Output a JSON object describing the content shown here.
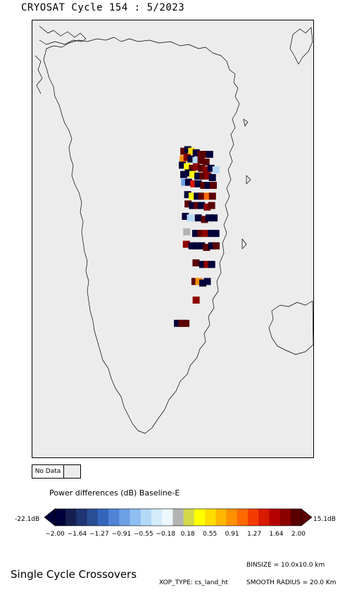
{
  "title": "CRYOSAT Cycle 154 : 5/2023",
  "no_data": {
    "label": "No Data",
    "color": "#ececec"
  },
  "colorbar": {
    "title": "Power differences (dB) Baseline-E",
    "min_label": "-22.1dB",
    "max_label": "15.1dB",
    "ticks": [
      "−2.00",
      "−1.64",
      "−1.27",
      "−0.91",
      "−0.55",
      "−0.18",
      "0.18",
      "0.55",
      "0.91",
      "1.27",
      "1.64",
      "2.00"
    ],
    "colors": [
      "#00003a",
      "#15204f",
      "#1f3572",
      "#284f96",
      "#3366bb",
      "#4e83d6",
      "#6ea0e6",
      "#8ebdf2",
      "#b3d9f8",
      "#d4ecfb",
      "#eef8fe",
      "#b4b4b4",
      "#d3d84a",
      "#ffff00",
      "#ffdd00",
      "#ffb800",
      "#ff9000",
      "#ff6a00",
      "#f43c00",
      "#d81a00",
      "#b50000",
      "#8c0000",
      "#5a0000"
    ]
  },
  "footer": {
    "title": "Single Cycle Crossovers",
    "binsize": "BINSIZE = 10.0x10.0 km",
    "xop_type": "XOP_TYPE: cs_land_ht",
    "smooth_radius": "SMOOTH RADIUS = 20.0 Km"
  },
  "map": {
    "background_color": "#ececec",
    "coastline_color": "#000000",
    "cells": [
      {
        "lon": -38.5,
        "lat": 80.2,
        "c": "#5a0000"
      },
      {
        "lon": -37.8,
        "lat": 80.3,
        "c": "#00003a"
      },
      {
        "lon": -37.1,
        "lat": 80.2,
        "c": "#ffdd00"
      },
      {
        "lon": -36.3,
        "lat": 80.1,
        "c": "#00003a"
      },
      {
        "lon": -35.5,
        "lat": 80.0,
        "c": "#5a0000"
      },
      {
        "lon": -34.7,
        "lat": 80.0,
        "c": "#5a0000"
      },
      {
        "lon": -33.9,
        "lat": 80.0,
        "c": "#00003a"
      },
      {
        "lon": -38.6,
        "lat": 79.7,
        "c": "#ff9000"
      },
      {
        "lon": -37.9,
        "lat": 79.8,
        "c": "#8c0000"
      },
      {
        "lon": -37.2,
        "lat": 79.7,
        "c": "#00003a"
      },
      {
        "lon": -36.3,
        "lat": 79.6,
        "c": "#b3d9f8"
      },
      {
        "lon": -35.4,
        "lat": 79.6,
        "c": "#5a0000"
      },
      {
        "lon": -34.5,
        "lat": 79.5,
        "c": "#5a0000"
      },
      {
        "lon": -38.7,
        "lat": 79.3,
        "c": "#00003a"
      },
      {
        "lon": -37.8,
        "lat": 79.2,
        "c": "#ffff00"
      },
      {
        "lon": -36.9,
        "lat": 79.1,
        "c": "#5a0000"
      },
      {
        "lon": -36.2,
        "lat": 79.2,
        "c": "#8c0000"
      },
      {
        "lon": -35.3,
        "lat": 79.1,
        "c": "#5a0000"
      },
      {
        "lon": -34.4,
        "lat": 79.0,
        "c": "#8c0000"
      },
      {
        "lon": -33.6,
        "lat": 79.1,
        "c": "#00003a"
      },
      {
        "lon": -32.7,
        "lat": 79.0,
        "c": "#b3d9f8"
      },
      {
        "lon": -38.4,
        "lat": 78.7,
        "c": "#00003a"
      },
      {
        "lon": -37.6,
        "lat": 78.8,
        "c": "#00003a"
      },
      {
        "lon": -36.8,
        "lat": 78.7,
        "c": "#ffff00"
      },
      {
        "lon": -35.9,
        "lat": 78.6,
        "c": "#00003a"
      },
      {
        "lon": -35.0,
        "lat": 78.6,
        "c": "#5a0000"
      },
      {
        "lon": -34.1,
        "lat": 78.6,
        "c": "#8c0000"
      },
      {
        "lon": -33.3,
        "lat": 78.5,
        "c": "#00003a"
      },
      {
        "lon": -38.2,
        "lat": 78.2,
        "c": "#6ea0e6"
      },
      {
        "lon": -37.5,
        "lat": 78.2,
        "c": "#00003a"
      },
      {
        "lon": -36.6,
        "lat": 78.1,
        "c": "#d81a00"
      },
      {
        "lon": -35.8,
        "lat": 78.1,
        "c": "#00003a"
      },
      {
        "lon": -34.8,
        "lat": 78.0,
        "c": "#5a0000"
      },
      {
        "lon": -34.0,
        "lat": 78.0,
        "c": "#00003a"
      },
      {
        "lon": -33.1,
        "lat": 78.0,
        "c": "#5a0000"
      },
      {
        "lon": -37.6,
        "lat": 77.4,
        "c": "#00003a"
      },
      {
        "lon": -36.8,
        "lat": 77.3,
        "c": "#ffff00"
      },
      {
        "lon": -35.9,
        "lat": 77.3,
        "c": "#00003a"
      },
      {
        "lon": -35.1,
        "lat": 77.3,
        "c": "#5a0000"
      },
      {
        "lon": -34.1,
        "lat": 77.3,
        "c": "#ff6a00"
      },
      {
        "lon": -33.2,
        "lat": 77.3,
        "c": "#5a0000"
      },
      {
        "lon": -37.5,
        "lat": 76.8,
        "c": "#5a0000"
      },
      {
        "lon": -36.7,
        "lat": 76.7,
        "c": "#00003a"
      },
      {
        "lon": -35.9,
        "lat": 76.7,
        "c": "#5a0000"
      },
      {
        "lon": -35.1,
        "lat": 76.7,
        "c": "#00003a"
      },
      {
        "lon": -34.1,
        "lat": 76.6,
        "c": "#8c0000"
      },
      {
        "lon": -33.3,
        "lat": 76.7,
        "c": "#5a0000"
      },
      {
        "lon": -37.9,
        "lat": 76.0,
        "c": "#00003a"
      },
      {
        "lon": -37.0,
        "lat": 75.9,
        "c": "#b3d9f8"
      },
      {
        "lon": -35.6,
        "lat": 75.9,
        "c": "#00003a"
      },
      {
        "lon": -34.5,
        "lat": 75.8,
        "c": "#5a0000"
      },
      {
        "lon": -33.7,
        "lat": 75.9,
        "c": "#00003a"
      },
      {
        "lon": -32.8,
        "lat": 75.9,
        "c": "#00003a"
      },
      {
        "lon": -37.6,
        "lat": 75.0,
        "c": "#b4b4b4"
      },
      {
        "lon": -36.0,
        "lat": 74.9,
        "c": "#00003a"
      },
      {
        "lon": -35.1,
        "lat": 74.9,
        "c": "#5a0000"
      },
      {
        "lon": -34.3,
        "lat": 74.9,
        "c": "#8c0000"
      },
      {
        "lon": -33.2,
        "lat": 74.9,
        "c": "#00003a"
      },
      {
        "lon": -32.4,
        "lat": 74.9,
        "c": "#00003a"
      },
      {
        "lon": -37.6,
        "lat": 74.2,
        "c": "#8c0000"
      },
      {
        "lon": -36.6,
        "lat": 74.1,
        "c": "#00003a"
      },
      {
        "lon": -35.7,
        "lat": 74.1,
        "c": "#00003a"
      },
      {
        "lon": -34.9,
        "lat": 74.1,
        "c": "#00003a"
      },
      {
        "lon": -34.0,
        "lat": 74.0,
        "c": "#5a0000"
      },
      {
        "lon": -33.1,
        "lat": 74.1,
        "c": "#00003a"
      },
      {
        "lon": -32.3,
        "lat": 74.1,
        "c": "#5a0000"
      },
      {
        "lon": -35.8,
        "lat": 73.0,
        "c": "#5a0000"
      },
      {
        "lon": -34.6,
        "lat": 72.9,
        "c": "#00003a"
      },
      {
        "lon": -33.8,
        "lat": 72.9,
        "c": "#8c0000"
      },
      {
        "lon": -33.0,
        "lat": 72.9,
        "c": "#00003a"
      },
      {
        "lon": -35.9,
        "lat": 71.8,
        "c": "#5a0000"
      },
      {
        "lon": -35.2,
        "lat": 71.8,
        "c": "#ff9000"
      },
      {
        "lon": -34.5,
        "lat": 71.7,
        "c": "#00003a"
      },
      {
        "lon": -33.7,
        "lat": 71.8,
        "c": "#00003a"
      },
      {
        "lon": -35.6,
        "lat": 70.6,
        "c": "#8c0000"
      },
      {
        "lon": -38.8,
        "lat": 69.1,
        "c": "#00003a"
      },
      {
        "lon": -38.0,
        "lat": 69.1,
        "c": "#5a0000"
      },
      {
        "lon": -37.3,
        "lat": 69.1,
        "c": "#5a0000"
      }
    ]
  }
}
